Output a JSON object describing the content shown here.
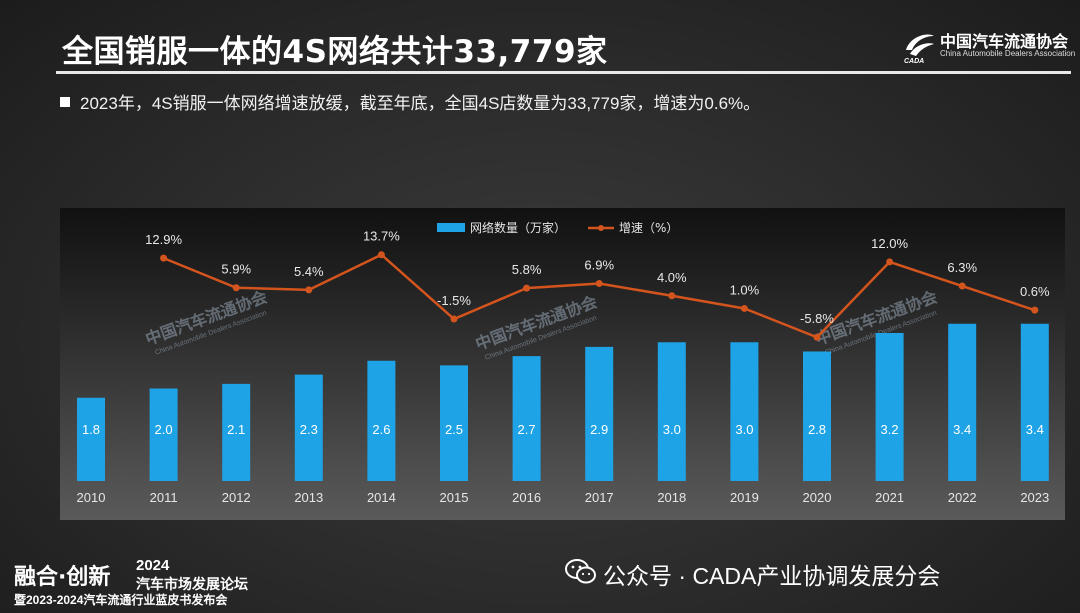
{
  "header": {
    "title": "全国销服一体的4S网络共计33,779家",
    "logo_cn": "中国汽车流通协会",
    "logo_en": "China Automobile Dealers Association"
  },
  "bullet_text": "2023年，4S销服一体网络增速放缓，截至年底，全国4S店数量为33,779家，增速为0.6%。",
  "watermark": {
    "cn": "中国汽车流通协会",
    "en": "China Automobile Dealers Association",
    "logo_text": "CADA"
  },
  "chart_data": {
    "type": "bar",
    "categories": [
      "2010",
      "2011",
      "2012",
      "2013",
      "2014",
      "2015",
      "2016",
      "2017",
      "2018",
      "2019",
      "2020",
      "2021",
      "2022",
      "2023"
    ],
    "series": [
      {
        "name": "网络数量（万家）",
        "kind": "bar",
        "color": "#1ea3e6",
        "values": [
          1.8,
          2.0,
          2.1,
          2.3,
          2.6,
          2.5,
          2.7,
          2.9,
          3.0,
          3.0,
          2.8,
          3.2,
          3.4,
          3.4
        ],
        "labels": [
          "1.8",
          "2.0",
          "2.1",
          "2.3",
          "2.6",
          "2.5",
          "2.7",
          "2.9",
          "3.0",
          "3.0",
          "2.8",
          "3.2",
          "3.4",
          "3.4"
        ]
      },
      {
        "name": "增速（%）",
        "kind": "line",
        "color": "#d4541e",
        "values": [
          null,
          12.9,
          5.9,
          5.4,
          13.7,
          -1.5,
          5.8,
          6.9,
          4.0,
          1.0,
          -5.8,
          12.0,
          6.3,
          0.6
        ],
        "labels": [
          "",
          "12.9%",
          "5.9%",
          "5.4%",
          "13.7%",
          "-1.5%",
          "5.8%",
          "6.9%",
          "4.0%",
          "1.0%",
          "-5.8%",
          "12.0%",
          "6.3%",
          "0.6%"
        ]
      }
    ],
    "bar_axis_range": [
      0,
      3.6
    ],
    "line_axis_range": [
      -10,
      16
    ],
    "legend_position": "top-center",
    "grid": false
  },
  "footer": {
    "left_main": "融合·创新",
    "left_year": "2024",
    "left_sub": "汽车市场发展论坛",
    "left_line2": "暨2023-2024汽车流通行业蓝皮书发布会",
    "right_text": "公众号 · CADA产业协调发展分会"
  }
}
